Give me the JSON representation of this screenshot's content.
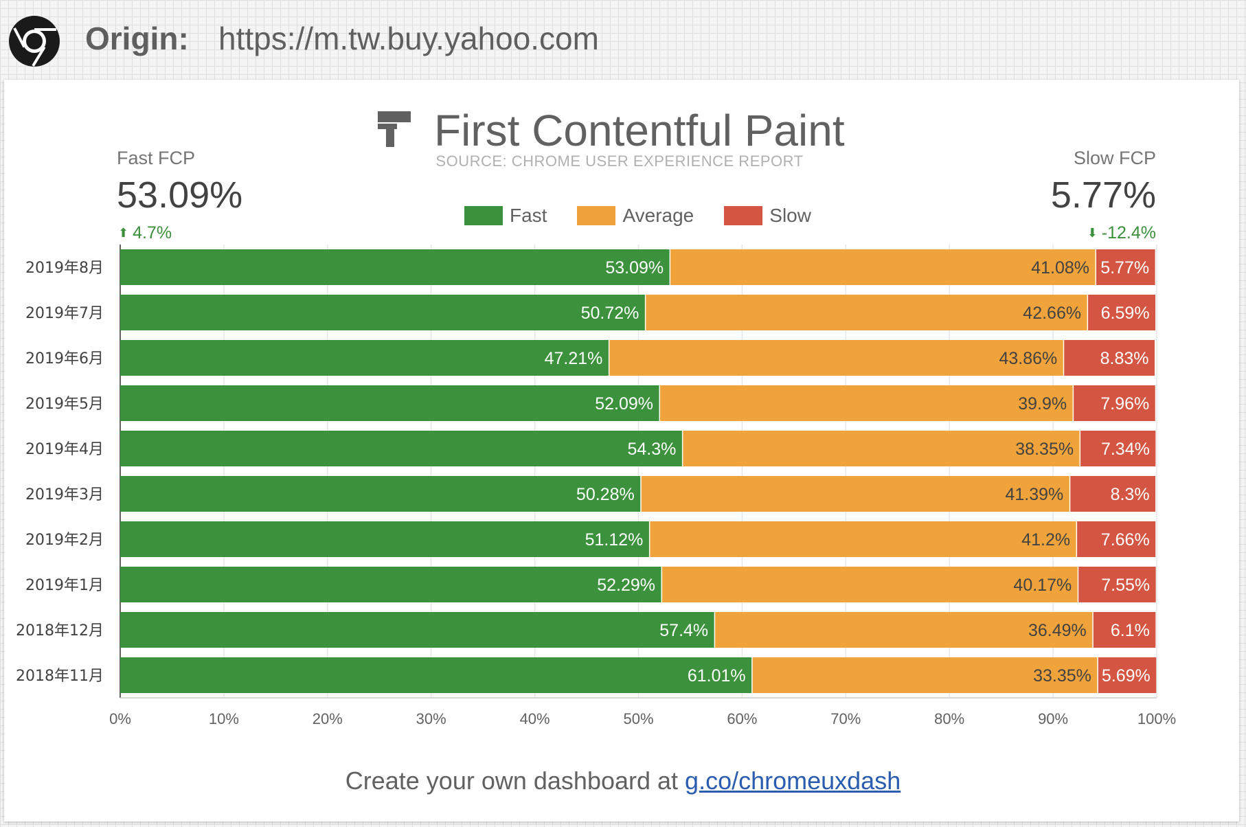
{
  "header": {
    "origin_label": "Origin:",
    "origin_url": "https://m.tw.buy.yahoo.com"
  },
  "chart_data": {
    "type": "bar",
    "orientation": "horizontal",
    "stacked": true,
    "title": "First Contentful Paint",
    "subtitle": "SOURCE: CHROME USER EXPERIENCE REPORT",
    "categories": [
      "2019年8月",
      "2019年7月",
      "2019年6月",
      "2019年5月",
      "2019年4月",
      "2019年3月",
      "2019年2月",
      "2019年1月",
      "2018年12月",
      "2018年11月"
    ],
    "series": [
      {
        "name": "Fast",
        "color": "#3c923c",
        "values": [
          53.09,
          50.72,
          47.21,
          52.09,
          54.3,
          50.28,
          51.12,
          52.29,
          57.4,
          61.01
        ]
      },
      {
        "name": "Average",
        "color": "#f0a33a",
        "values": [
          41.08,
          42.66,
          43.86,
          39.9,
          38.35,
          41.39,
          41.2,
          40.17,
          36.49,
          33.35
        ]
      },
      {
        "name": "Slow",
        "color": "#d35542",
        "values": [
          5.77,
          6.59,
          8.83,
          7.96,
          7.34,
          8.3,
          7.66,
          7.55,
          6.1,
          5.69
        ]
      }
    ],
    "xlim": [
      0,
      100
    ],
    "xticks": [
      "0%",
      "10%",
      "20%",
      "30%",
      "40%",
      "50%",
      "60%",
      "70%",
      "80%",
      "90%",
      "100%"
    ],
    "value_suffix": "%",
    "grid": true,
    "legend_position": "top-center"
  },
  "kpi": {
    "fast": {
      "label": "Fast FCP",
      "value": "53.09%",
      "change": "4.7%",
      "direction": "up"
    },
    "slow": {
      "label": "Slow FCP",
      "value": "5.77%",
      "change": "-12.4%",
      "direction": "down"
    }
  },
  "footer": {
    "text": "Create your own dashboard at ",
    "link_text": "g.co/chromeuxdash"
  },
  "icons": {
    "logo": "chrome-logo-icon",
    "title": "paint-roller-icon",
    "kpi_up": "arrow-up-icon",
    "kpi_down": "arrow-down-icon"
  }
}
